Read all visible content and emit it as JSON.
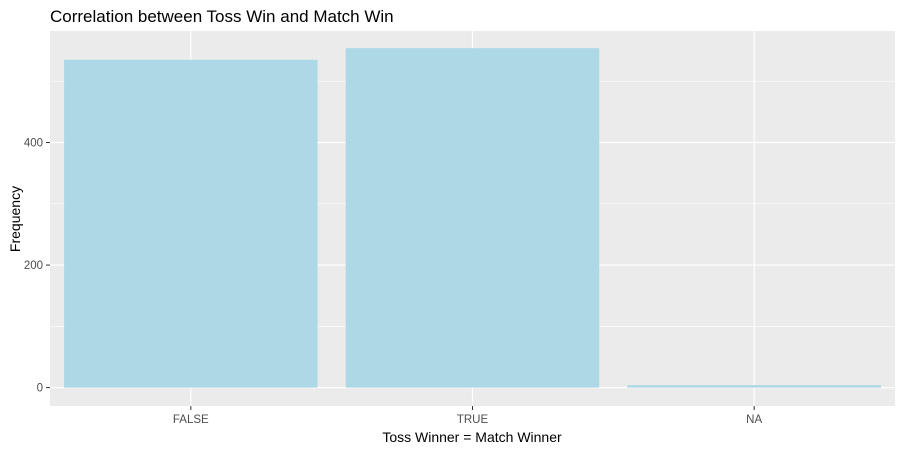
{
  "chart_data": {
    "type": "bar",
    "title": "Correlation between Toss Win and Match Win",
    "xlabel": "Toss Winner = Match Winner",
    "ylabel": "Frequency",
    "categories": [
      "FALSE",
      "TRUE",
      "NA"
    ],
    "values": [
      535,
      554,
      4
    ],
    "ylim": [
      -30,
      582
    ],
    "yticks": [
      0,
      200,
      400
    ],
    "ytick_labels": [
      "0",
      "200",
      "400"
    ],
    "grid": true,
    "legend": "none",
    "colors": {
      "bar": "#add8e6",
      "panel_background": "#ebebeb",
      "grid": "#ffffff",
      "text": "#000000",
      "tick_text": "#4d4d4d",
      "tick_mark": "#333333"
    }
  }
}
